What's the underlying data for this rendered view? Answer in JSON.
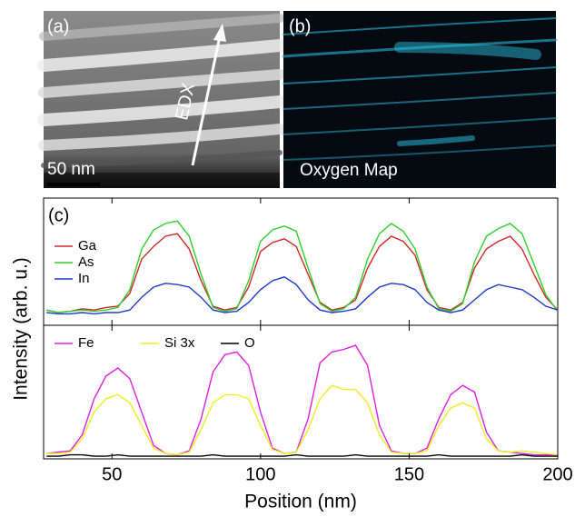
{
  "panels": {
    "a": {
      "label": "(a)",
      "arrow_label": "EDX",
      "scale_bar": "50 nm"
    },
    "b": {
      "label": "(b)",
      "caption": "Oxygen Map"
    }
  },
  "chart_data": [
    {
      "type": "line",
      "panel_label": "(c)",
      "y_label": "Intensity (arb. u.)",
      "legend": "upper left",
      "xlim": [
        27,
        200
      ],
      "ylim": [
        0,
        100
      ],
      "x": [
        28,
        32,
        36,
        40,
        44,
        48,
        52,
        56,
        60,
        64,
        68,
        72,
        76,
        80,
        84,
        88,
        92,
        96,
        100,
        104,
        108,
        112,
        116,
        120,
        124,
        128,
        132,
        136,
        140,
        144,
        148,
        152,
        156,
        160,
        164,
        168,
        172,
        176,
        180,
        184,
        188,
        192,
        196,
        200
      ],
      "series": [
        {
          "name": "Ga",
          "color": "#d02828",
          "values": [
            12,
            10,
            11,
            13,
            12,
            14,
            15,
            25,
            52,
            62,
            70,
            72,
            60,
            35,
            15,
            12,
            14,
            30,
            58,
            65,
            68,
            62,
            40,
            18,
            12,
            14,
            20,
            45,
            62,
            70,
            66,
            55,
            28,
            14,
            12,
            18,
            45,
            60,
            66,
            70,
            60,
            40,
            22,
            12
          ]
        },
        {
          "name": "As",
          "color": "#2ed12e",
          "values": [
            12,
            10,
            11,
            12,
            11,
            12,
            14,
            28,
            60,
            75,
            80,
            82,
            70,
            40,
            14,
            11,
            13,
            35,
            66,
            75,
            78,
            74,
            45,
            17,
            11,
            13,
            22,
            52,
            72,
            80,
            74,
            60,
            30,
            13,
            11,
            17,
            50,
            70,
            76,
            80,
            72,
            48,
            24,
            11
          ]
        },
        {
          "name": "In",
          "color": "#2038cc",
          "values": [
            10,
            9,
            9,
            10,
            9,
            10,
            10,
            12,
            22,
            30,
            33,
            32,
            30,
            22,
            12,
            10,
            11,
            18,
            28,
            35,
            38,
            32,
            20,
            12,
            10,
            11,
            13,
            22,
            30,
            33,
            32,
            28,
            18,
            12,
            10,
            12,
            20,
            28,
            32,
            30,
            28,
            22,
            15,
            12
          ]
        }
      ]
    },
    {
      "type": "line",
      "x_label": "Position (nm)",
      "legend": "upper left",
      "xlim": [
        27,
        200
      ],
      "ylim": [
        0,
        100
      ],
      "xticks": [
        50,
        100,
        150,
        200
      ],
      "x": [
        28,
        32,
        36,
        40,
        44,
        48,
        52,
        56,
        60,
        64,
        68,
        72,
        76,
        80,
        84,
        88,
        92,
        96,
        100,
        104,
        108,
        112,
        116,
        120,
        124,
        128,
        132,
        136,
        140,
        144,
        148,
        152,
        156,
        160,
        164,
        168,
        172,
        176,
        180,
        184,
        188,
        192,
        196,
        200
      ],
      "series": [
        {
          "name": "Fe",
          "color": "#e020e0",
          "values": [
            4,
            5,
            6,
            18,
            45,
            62,
            68,
            60,
            35,
            10,
            4,
            3,
            6,
            30,
            65,
            78,
            80,
            70,
            35,
            8,
            4,
            5,
            30,
            72,
            80,
            82,
            85,
            70,
            25,
            6,
            4,
            4,
            8,
            30,
            48,
            55,
            50,
            20,
            6,
            5,
            4,
            3,
            3,
            3
          ]
        },
        {
          "name": "Si 3x",
          "color": "#eeee20",
          "values": [
            4,
            4,
            5,
            15,
            35,
            45,
            48,
            42,
            25,
            8,
            4,
            3,
            5,
            22,
            42,
            48,
            48,
            45,
            25,
            7,
            4,
            5,
            22,
            45,
            55,
            52,
            52,
            42,
            18,
            5,
            4,
            4,
            6,
            25,
            38,
            42,
            38,
            15,
            6,
            5,
            6,
            5,
            4,
            3
          ]
        },
        {
          "name": "O",
          "color": "#000000",
          "values": [
            2,
            2,
            3,
            3,
            2,
            2,
            3,
            2,
            2,
            2,
            2,
            2,
            2,
            2,
            3,
            2,
            2,
            2,
            2,
            2,
            2,
            3,
            2,
            2,
            2,
            2,
            3,
            2,
            2,
            2,
            2,
            2,
            2,
            3,
            2,
            2,
            2,
            2,
            2,
            2,
            3,
            2,
            2,
            2
          ]
        }
      ]
    }
  ]
}
